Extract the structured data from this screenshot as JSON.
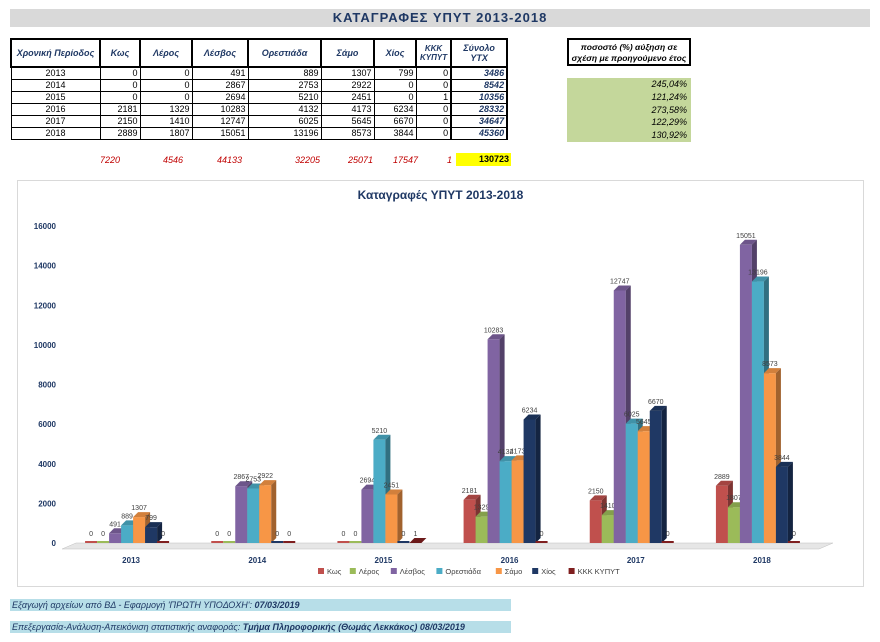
{
  "page_title": "ΚΑΤΑΓΡΑΦΕΣ ΥΠΥΤ 2013-2018",
  "table": {
    "headers": [
      "Χρονική Περίοδος",
      "Κως",
      "Λέρος",
      "Λέσβος",
      "Ορεστιάδα",
      "Σάμο",
      "Χίος",
      "ΚΚΚ ΚΥΠΥΤ",
      "Σύνολο ΥΤΧ"
    ],
    "rows": [
      [
        "2013",
        "0",
        "0",
        "491",
        "889",
        "1307",
        "799",
        "0",
        "3486"
      ],
      [
        "2014",
        "0",
        "0",
        "2867",
        "2753",
        "2922",
        "0",
        "0",
        "8542"
      ],
      [
        "2015",
        "0",
        "0",
        "2694",
        "5210",
        "2451",
        "0",
        "1",
        "10356"
      ],
      [
        "2016",
        "2181",
        "1329",
        "10283",
        "4132",
        "4173",
        "6234",
        "0",
        "28332"
      ],
      [
        "2017",
        "2150",
        "1410",
        "12747",
        "6025",
        "5645",
        "6670",
        "0",
        "34647"
      ],
      [
        "2018",
        "2889",
        "1807",
        "15051",
        "13196",
        "8573",
        "3844",
        "0",
        "45360"
      ]
    ],
    "totals": [
      "7220",
      "4546",
      "44133",
      "32205",
      "25071",
      "17547",
      "1"
    ],
    "grand_total": "130723"
  },
  "growth": {
    "header": "ποσοστό (%) αύξηση σε σχέση με προηγούμενο έτος",
    "values": [
      "245,04%",
      "121,24%",
      "273,58%",
      "122,29%",
      "130,92%"
    ]
  },
  "chart_data": {
    "type": "bar",
    "title": "Καταγραφές ΥΠΥΤ 2013-2018",
    "categories": [
      "2013",
      "2014",
      "2015",
      "2016",
      "2017",
      "2018"
    ],
    "ylim": [
      0,
      16000
    ],
    "yticks": [
      "0",
      "2000",
      "4000",
      "6000",
      "8000",
      "10000",
      "12000",
      "14000",
      "16000"
    ],
    "legend_position": "bottom",
    "series": [
      {
        "name": "Κως",
        "color": "#c0504d",
        "values": [
          0,
          0,
          0,
          2181,
          2150,
          2889
        ]
      },
      {
        "name": "Λέρος",
        "color": "#9bbb59",
        "values": [
          0,
          0,
          0,
          1329,
          1410,
          1807
        ]
      },
      {
        "name": "Λέσβος",
        "color": "#8064a2",
        "values": [
          491,
          2867,
          2694,
          10283,
          12747,
          15051
        ]
      },
      {
        "name": "Ορεστιάδα",
        "color": "#4bacc6",
        "values": [
          889,
          2753,
          5210,
          4132,
          6025,
          13196
        ]
      },
      {
        "name": "Σάμο",
        "color": "#f79646",
        "values": [
          1307,
          2922,
          2451,
          4173,
          5645,
          8573
        ]
      },
      {
        "name": "Χίος",
        "color": "#1f3864",
        "values": [
          799,
          0,
          0,
          6234,
          6670,
          3844
        ]
      },
      {
        "name": "ΚΚΚ ΚΥΠΥΤ",
        "color": "#7f1f1f",
        "values": [
          0,
          0,
          1,
          0,
          0,
          0
        ]
      }
    ]
  },
  "footer": {
    "line1_label": "Εξαγωγή αρχείων από ΒΔ - Εφαρμογή 'ΠΡΩΤΗ ΥΠΟΔΟΧΗ':",
    "line1_value": "07/03/2019",
    "line2_label": "Επεξεργασία-Ανάλυση-Απεικόνιση στατιστικής αναφοράς:",
    "line2_value": "Τμήμα Πληροφορικής (Θωμάς Λεκκάκος) 08/03/2019"
  }
}
